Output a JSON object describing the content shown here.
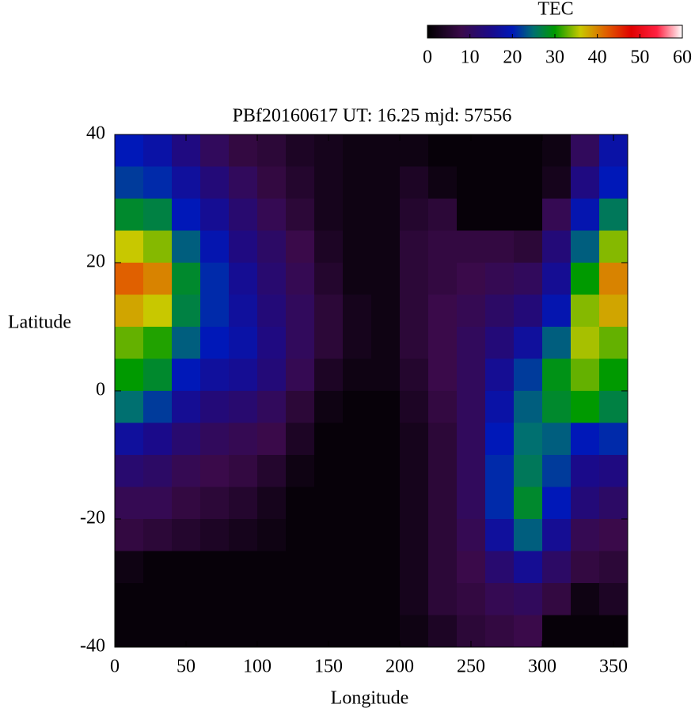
{
  "chart_data": {
    "type": "heatmap",
    "title": "PBf20160617  UT: 16.25  mjd: 57556",
    "xlabel": "Longitude",
    "ylabel": "Latitude",
    "colorbar_label": "TEC",
    "xlim": [
      0,
      360
    ],
    "xticks": [
      0,
      50,
      100,
      150,
      200,
      250,
      300,
      350
    ],
    "ylim": [
      -40,
      40
    ],
    "yticks": [
      40,
      20,
      0,
      -20,
      -40
    ],
    "clim": [
      0,
      60
    ],
    "cticks": [
      0,
      10,
      20,
      30,
      40,
      50,
      60
    ],
    "colormap": [
      [
        0,
        "#000000"
      ],
      [
        8,
        "#3a0a4a"
      ],
      [
        15,
        "#1a0a8a"
      ],
      [
        20,
        "#0018b8"
      ],
      [
        25,
        "#007070"
      ],
      [
        30,
        "#009a00"
      ],
      [
        36,
        "#c8c800"
      ],
      [
        42,
        "#e06000"
      ],
      [
        48,
        "#e00000"
      ],
      [
        54,
        "#ff2040"
      ],
      [
        60,
        "#ffffff"
      ]
    ],
    "x": [
      10,
      30,
      50,
      70,
      90,
      110,
      130,
      150,
      170,
      190,
      210,
      230,
      250,
      270,
      290,
      310,
      330,
      350
    ],
    "y": [
      37.5,
      32.5,
      27.5,
      22.5,
      17.5,
      12.5,
      7.5,
      2.5,
      -2.5,
      -7.5,
      -12.5,
      -17.5,
      -22.5,
      -27.5,
      -32.5,
      -37.5
    ],
    "z": [
      [
        20,
        22,
        28,
        36,
        42,
        38,
        33,
        30,
        25,
        17,
        12,
        9,
        7,
        2,
        1,
        1
      ],
      [
        18,
        21,
        27,
        34,
        40,
        36,
        31,
        28,
        22,
        15,
        11,
        9,
        6,
        1,
        1,
        1
      ],
      [
        14,
        17,
        20,
        24,
        28,
        27,
        24,
        20,
        16,
        12,
        9,
        7,
        5,
        1,
        1,
        1
      ],
      [
        10,
        13,
        16,
        19,
        21,
        21,
        20,
        17,
        13,
        10,
        8,
        6,
        4,
        1,
        1,
        1
      ],
      [
        7,
        10,
        12,
        14,
        16,
        17,
        18,
        16,
        12,
        9,
        7,
        5,
        3,
        1,
        1,
        1
      ],
      [
        6,
        7,
        9,
        11,
        12,
        13,
        14,
        13,
        10,
        8,
        5,
        3,
        2,
        1,
        1,
        1
      ],
      [
        4,
        5,
        6,
        8,
        9,
        10,
        10,
        9,
        6,
        4,
        2,
        1,
        1,
        1,
        1,
        1
      ],
      [
        3,
        3,
        3,
        4,
        5,
        6,
        6,
        4,
        2,
        1,
        1,
        1,
        1,
        1,
        1,
        1
      ],
      [
        2,
        2,
        2,
        2,
        2,
        3,
        3,
        2,
        1,
        1,
        1,
        1,
        1,
        1,
        1,
        1
      ],
      [
        2,
        2,
        2,
        2,
        2,
        2,
        2,
        2,
        1,
        1,
        1,
        1,
        1,
        1,
        1,
        1
      ],
      [
        2,
        4,
        5,
        6,
        6,
        6,
        6,
        5,
        4,
        3,
        3,
        3,
        3,
        3,
        3,
        2
      ],
      [
        1,
        2,
        6,
        7,
        7,
        8,
        8,
        8,
        7,
        6,
        6,
        6,
        6,
        6,
        6,
        4
      ],
      [
        1,
        1,
        1,
        7,
        8,
        9,
        10,
        10,
        10,
        10,
        10,
        10,
        9,
        8,
        7,
        6
      ],
      [
        1,
        1,
        1,
        7,
        9,
        11,
        13,
        16,
        18,
        20,
        21,
        21,
        17,
        12,
        9,
        7
      ],
      [
        1,
        1,
        1,
        6,
        10,
        13,
        17,
        22,
        24,
        25,
        26,
        28,
        24,
        16,
        10,
        8
      ],
      [
        2,
        3,
        9,
        13,
        16,
        19,
        24,
        29,
        28,
        24,
        22,
        20,
        16,
        11,
        7,
        1
      ],
      [
        10,
        14,
        19,
        24,
        30,
        34,
        35,
        33,
        30,
        20,
        15,
        13,
        9,
        7,
        2,
        1
      ],
      [
        18,
        20,
        26,
        34,
        40,
        38,
        33,
        30,
        27,
        21,
        14,
        11,
        8,
        6,
        4,
        1
      ]
    ]
  }
}
